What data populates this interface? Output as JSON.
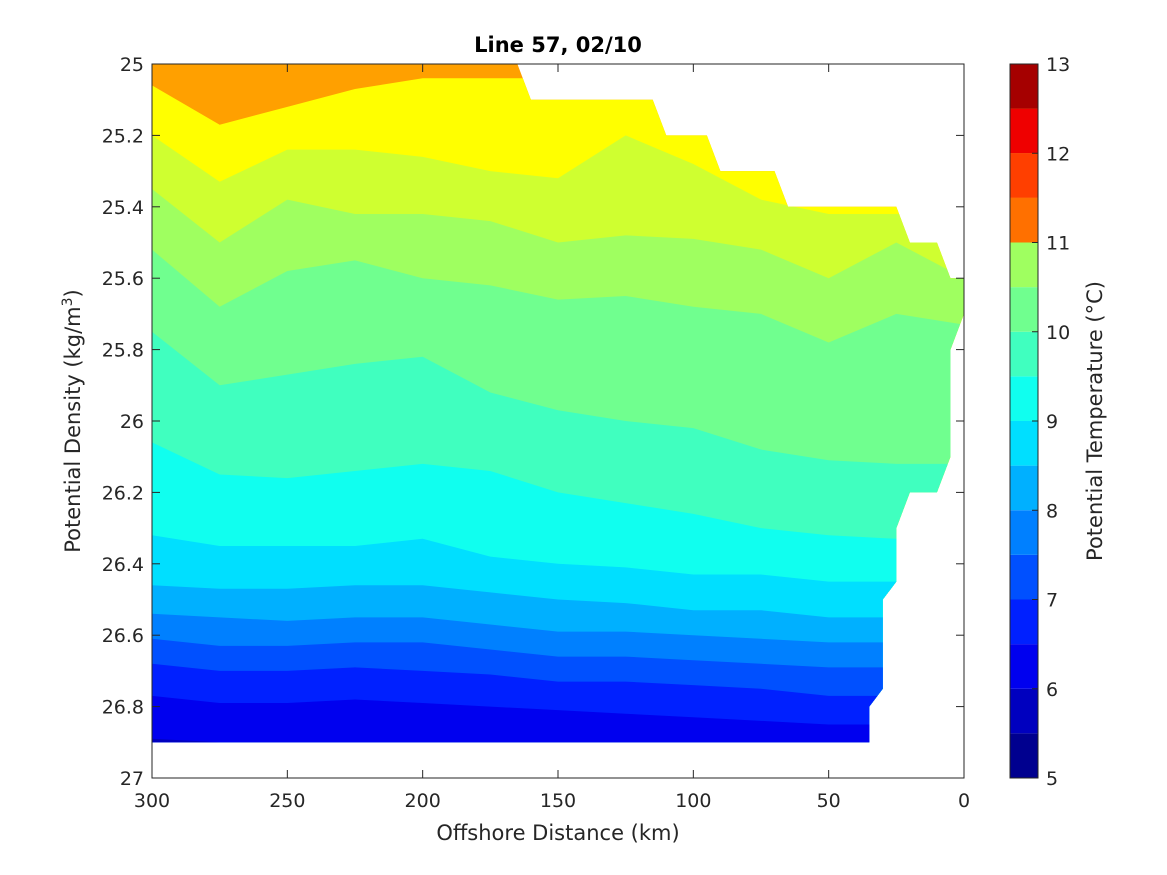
{
  "chart_data": {
    "type": "contourf",
    "title": "Line 57, 02/10",
    "xlabel": "Offshore Distance (km)",
    "ylabel": "Potential Density (kg/m³)",
    "ylabel_parts": {
      "base": "Potential Density (kg/m",
      "sup": "3",
      "end": ")"
    },
    "xlim": [
      300,
      0
    ],
    "ylim": [
      25,
      27
    ],
    "y_reversed": true,
    "x_reversed": true,
    "xticks": [
      300,
      250,
      200,
      150,
      100,
      50,
      0
    ],
    "xtick_labels": [
      "300",
      "250",
      "200",
      "150",
      "100",
      "50",
      "0"
    ],
    "yticks": [
      25,
      25.2,
      25.4,
      25.6,
      25.8,
      26,
      26.2,
      26.4,
      26.6,
      26.8,
      27
    ],
    "ytick_labels": [
      "25",
      "25.2",
      "25.4",
      "25.6",
      "25.8",
      "26",
      "26.2",
      "26.4",
      "26.6",
      "26.8",
      "27"
    ],
    "colorbar": {
      "label": "Potential Temperature (°C)",
      "range": [
        5,
        13
      ],
      "ticks": [
        5,
        6,
        7,
        8,
        9,
        10,
        11,
        12,
        13
      ],
      "tick_labels": [
        "5",
        "6",
        "7",
        "8",
        "9",
        "10",
        "11",
        "12",
        "13"
      ],
      "levels": [
        5,
        5.5,
        6,
        6.5,
        7,
        7.5,
        8,
        8.5,
        9,
        9.5,
        10,
        10.5,
        11,
        11.5,
        12,
        12.5,
        13
      ],
      "colors": [
        "#00008f",
        "#0000bf",
        "#0000ef",
        "#0020ff",
        "#0050ff",
        "#0080ff",
        "#00b0ff",
        "#00dfff",
        "#10ffef",
        "#40ffbf",
        "#70ff8f",
        "#9fff60",
        "#cfff30",
        "#ffff00",
        "#ffcf00",
        "#ffa000"
      ]
    },
    "data_top_boundary": [
      [
        300,
        25.0
      ],
      [
        165,
        25.0
      ],
      [
        160,
        25.1
      ],
      [
        115,
        25.1
      ],
      [
        110,
        25.2
      ],
      [
        95,
        25.2
      ],
      [
        90,
        25.3
      ],
      [
        70,
        25.3
      ],
      [
        65,
        25.4
      ],
      [
        25,
        25.4
      ],
      [
        20,
        25.5
      ],
      [
        10,
        25.5
      ],
      [
        5,
        25.6
      ],
      [
        0,
        25.6
      ]
    ],
    "data_bottom_boundary": [
      [
        0,
        25.7
      ],
      [
        5,
        25.8
      ],
      [
        5,
        26.1
      ],
      [
        10,
        26.2
      ],
      [
        20,
        26.2
      ],
      [
        25,
        26.3
      ],
      [
        25,
        26.45
      ],
      [
        30,
        26.5
      ],
      [
        30,
        26.75
      ],
      [
        35,
        26.8
      ],
      [
        35,
        26.9
      ],
      [
        300,
        26.9
      ]
    ],
    "isotherm_stations_x": [
      300,
      275,
      250,
      225,
      200,
      175,
      150,
      125,
      100,
      75,
      50,
      25,
      0
    ],
    "isotherms": [
      {
        "temp": 12.0,
        "y": [
          25.06,
          25.17,
          25.12,
          25.07,
          25.04,
          null,
          null,
          null,
          null,
          null,
          null,
          null,
          null
        ]
      },
      {
        "temp": 11.5,
        "y": [
          25.2,
          25.33,
          25.24,
          25.24,
          25.26,
          25.3,
          25.32,
          25.2,
          25.28,
          25.38,
          25.42,
          null,
          null
        ]
      },
      {
        "temp": 11.0,
        "y": [
          25.35,
          25.5,
          25.38,
          25.42,
          25.42,
          25.44,
          25.5,
          25.48,
          25.49,
          25.52,
          25.6,
          25.5,
          25.6
        ]
      },
      {
        "temp": 10.5,
        "y": [
          25.52,
          25.68,
          25.58,
          25.55,
          25.6,
          25.62,
          25.66,
          25.65,
          25.68,
          25.7,
          25.78,
          25.7,
          25.73
        ]
      },
      {
        "temp": 10.0,
        "y": [
          25.75,
          25.9,
          25.87,
          25.84,
          25.82,
          25.92,
          25.97,
          26.0,
          26.02,
          26.08,
          26.11,
          26.12,
          26.12
        ]
      },
      {
        "temp": 9.5,
        "y": [
          26.06,
          26.15,
          26.16,
          26.14,
          26.12,
          26.14,
          26.2,
          26.23,
          26.26,
          26.3,
          26.32,
          26.33,
          26.33
        ]
      },
      {
        "temp": 9.0,
        "y": [
          26.32,
          26.35,
          26.35,
          26.35,
          26.33,
          26.38,
          26.4,
          26.41,
          26.43,
          26.43,
          26.45,
          26.45,
          26.45
        ]
      },
      {
        "temp": 8.5,
        "y": [
          26.46,
          26.47,
          26.47,
          26.46,
          26.46,
          26.48,
          26.5,
          26.51,
          26.53,
          26.53,
          26.55,
          26.55,
          26.55
        ]
      },
      {
        "temp": 8.0,
        "y": [
          26.54,
          26.55,
          26.56,
          26.55,
          26.55,
          26.57,
          26.59,
          26.59,
          26.6,
          26.61,
          26.62,
          26.62,
          26.62
        ]
      },
      {
        "temp": 7.5,
        "y": [
          26.61,
          26.63,
          26.63,
          26.62,
          26.62,
          26.64,
          26.66,
          26.66,
          26.67,
          26.68,
          26.69,
          26.69,
          26.69
        ]
      },
      {
        "temp": 7.0,
        "y": [
          26.68,
          26.7,
          26.7,
          26.69,
          26.7,
          26.71,
          26.73,
          26.73,
          26.74,
          26.75,
          26.77,
          26.77,
          26.77
        ]
      },
      {
        "temp": 6.5,
        "y": [
          26.77,
          26.79,
          26.79,
          26.78,
          26.79,
          26.8,
          26.81,
          26.82,
          26.83,
          26.84,
          26.85,
          26.85,
          26.85
        ]
      },
      {
        "temp": 6.0,
        "y": [
          26.89,
          26.9,
          26.9,
          26.9,
          26.9,
          26.9,
          26.9,
          26.9,
          26.9,
          26.9,
          26.9,
          26.9,
          26.9
        ]
      }
    ],
    "surface_temp": 12.5,
    "deepest_temp": 5.75
  }
}
